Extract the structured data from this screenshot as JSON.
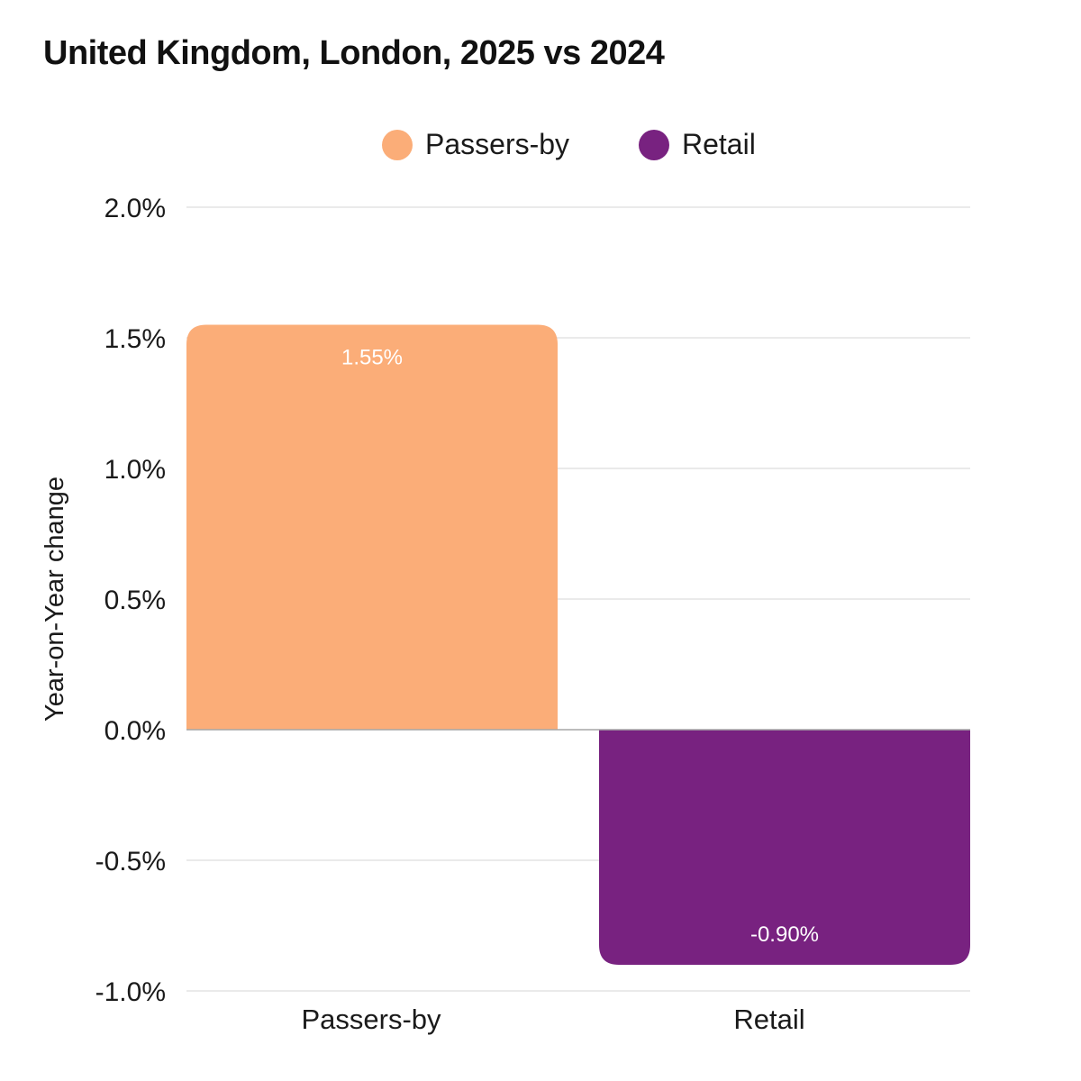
{
  "colors": {
    "passers_by": "#FBAD78",
    "retail": "#782280",
    "grid": "#E3E3E3",
    "zero_line": "#A6A6A6"
  },
  "legend": [
    {
      "label": "Passers-by",
      "color": "#FBAD78"
    },
    {
      "label": "Retail",
      "color": "#782280"
    }
  ],
  "chart_data": {
    "type": "bar",
    "title": "United Kingdom, London, 2025 vs 2024",
    "xlabel": "",
    "ylabel": "Year-on-Year change",
    "categories": [
      "Passers-by",
      "Retail"
    ],
    "values": [
      1.55,
      -0.9
    ],
    "value_labels": [
      "1.55%",
      "-0.90%"
    ],
    "ylim": [
      -1.0,
      2.0
    ],
    "yticks": [
      2.0,
      1.5,
      1.0,
      0.5,
      0.0,
      -0.5,
      -1.0
    ],
    "ytick_labels": [
      "2.0%",
      "1.5%",
      "1.0%",
      "0.5%",
      "0.0%",
      "-0.5%",
      "-1.0%"
    ],
    "grid": true,
    "legend_position": "top-center"
  }
}
